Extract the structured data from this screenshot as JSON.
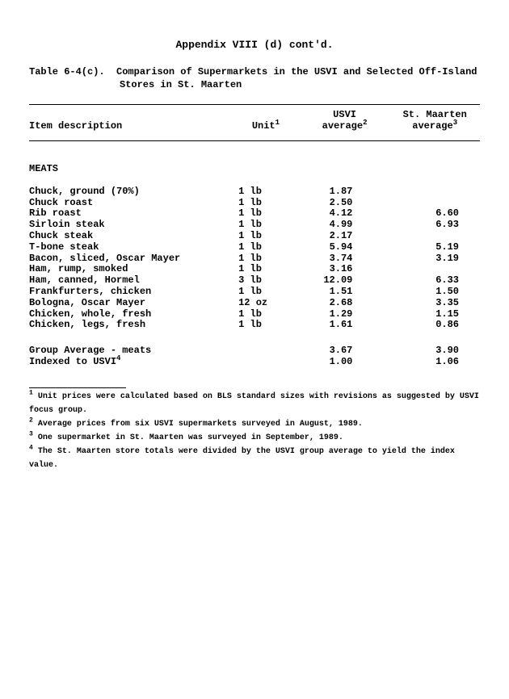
{
  "appendix_title": "Appendix VIII (d) cont'd.",
  "table_label": "Table 6-4(c).",
  "table_caption_line1": "Comparison of Supermarkets in the USVI and Selected Off-Island",
  "table_caption_line2": "Stores in St. Maarten",
  "headers": {
    "item": "Item description",
    "unit": "Unit",
    "unit_sup": "1",
    "usvi_line1": "USVI",
    "usvi_line2": "average",
    "usvi_sup": "2",
    "stm_line1": "St. Maarten",
    "stm_line2": "average",
    "stm_sup": "3"
  },
  "section_label": "MEATS",
  "rows": [
    {
      "item": "Chuck, ground (70%)",
      "unit": "1 lb",
      "usvi": "1.87",
      "stm": ""
    },
    {
      "item": "Chuck roast",
      "unit": "1 lb",
      "usvi": "2.50",
      "stm": ""
    },
    {
      "item": "Rib roast",
      "unit": "1 lb",
      "usvi": "4.12",
      "stm": "6.60"
    },
    {
      "item": "Sirloin steak",
      "unit": "1 lb",
      "usvi": "4.99",
      "stm": "6.93"
    },
    {
      "item": "Chuck steak",
      "unit": "1 lb",
      "usvi": "2.17",
      "stm": ""
    },
    {
      "item": "T-bone steak",
      "unit": "1 lb",
      "usvi": "5.94",
      "stm": "5.19"
    },
    {
      "item": "Bacon, sliced, Oscar Mayer",
      "unit": "1 lb",
      "usvi": "3.74",
      "stm": "3.19"
    },
    {
      "item": "Ham, rump, smoked",
      "unit": "1 lb",
      "usvi": "3.16",
      "stm": ""
    },
    {
      "item": "Ham, canned, Hormel",
      "unit": "3 lb",
      "usvi": "12.09",
      "stm": "6.33"
    },
    {
      "item": "Frankfurters, chicken",
      "unit": "1 lb",
      "usvi": "1.51",
      "stm": "1.50"
    },
    {
      "item": "Bologna, Oscar Mayer",
      "unit": "12 oz",
      "usvi": "2.68",
      "stm": "3.35"
    },
    {
      "item": "Chicken, whole, fresh",
      "unit": "1 lb",
      "usvi": "1.29",
      "stm": "1.15"
    },
    {
      "item": "Chicken, legs, fresh",
      "unit": "1 lb",
      "usvi": "1.61",
      "stm": "0.86"
    }
  ],
  "group_rows": [
    {
      "label": "Group Average - meats",
      "sup": "",
      "usvi": "3.67",
      "stm": "3.90"
    },
    {
      "label": "Indexed to USVI",
      "sup": "4",
      "usvi": "1.00",
      "stm": "1.06"
    }
  ],
  "footnotes": [
    {
      "n": "1",
      "text": "Unit prices were calculated based on BLS standard sizes with revisions as suggested by USVI focus group."
    },
    {
      "n": "2",
      "text": "Average prices from six USVI supermarkets surveyed in August, 1989."
    },
    {
      "n": "3",
      "text": "One supermarket in St. Maarten was surveyed in September, 1989."
    },
    {
      "n": "4",
      "text": "The St. Maarten store totals were divided by the USVI group average to yield the index value."
    }
  ]
}
